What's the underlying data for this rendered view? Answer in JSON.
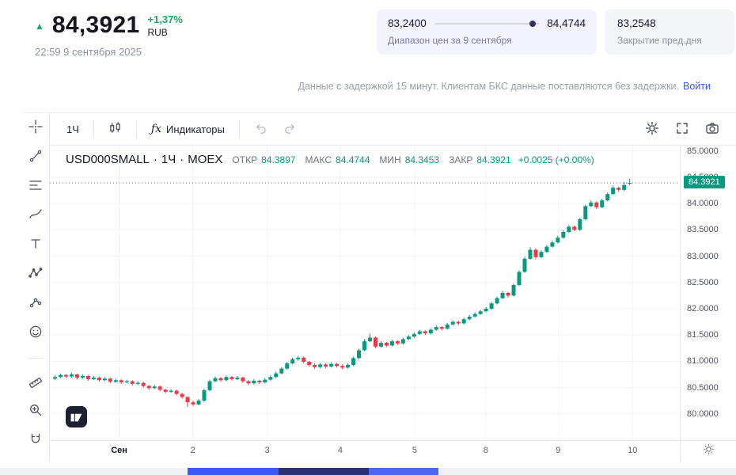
{
  "header": {
    "big_price": "84,3921",
    "change_pct": "+1,37%",
    "currency": "RUB",
    "timestamp": "22:59 9 сентября 2025",
    "range_widget": {
      "low": "83,2400",
      "high": "84,4744",
      "caption": "Диапазон цен за 9 сентября",
      "dot_position": 0.94
    },
    "prev_close": {
      "value": "83,2548",
      "caption": "Закрытие пред.дня"
    },
    "delay_notice": "Данные с задержкой 15 минут. Клиентам БКС данные поставляются без задержки.",
    "login_link": "Войти"
  },
  "toolbar": {
    "interval_button": "1Ч",
    "fx": "ƒx",
    "indicators_label": "Индикаторы"
  },
  "icons": {
    "toolbar_right": [
      "settings-icon",
      "fullscreen-icon",
      "camera-icon"
    ],
    "left_tools": [
      "crosshair",
      "trend-line",
      "fib-retracement",
      "brush",
      "text",
      "xabcd-pattern",
      "forecast",
      "emoji",
      "ruler",
      "zoom-in",
      "magnet"
    ]
  },
  "legend": {
    "symbol": "USD000SMALL",
    "separator": "·",
    "interval": "1Ч",
    "exchange": "MOEX",
    "open_label": "ОТКР",
    "open": "84.3897",
    "high_label": "МАКС",
    "high": "84.4744",
    "low_label": "МИН",
    "low": "84.3453",
    "close_label": "ЗАКР",
    "close": "84.3921",
    "change": "+0.0025 (+0.00%)"
  },
  "price_scale": {
    "labels": [
      "85.0000",
      "84.5000",
      "84.0000",
      "83.5000",
      "83.0000",
      "82.5000",
      "82.0000",
      "81.5000",
      "81.0000",
      "80.5000",
      "80.0000"
    ],
    "current_badge": "84.3921"
  },
  "time_scale": {
    "ticks": [
      {
        "label": "Сен",
        "pos": 0.11,
        "month": true
      },
      {
        "label": "2",
        "pos": 0.227
      },
      {
        "label": "3",
        "pos": 0.345
      },
      {
        "label": "4",
        "pos": 0.461
      },
      {
        "label": "5",
        "pos": 0.579
      },
      {
        "label": "8",
        "pos": 0.692
      },
      {
        "label": "9",
        "pos": 0.807
      },
      {
        "label": "10",
        "pos": 0.925
      }
    ]
  },
  "chart_data": {
    "type": "candlestick",
    "symbol": "USD000SMALL",
    "interval": "1Ч",
    "exchange": "MOEX",
    "title": "USD000SMALL · 1Ч · MOEX",
    "up_color": "#089981",
    "down_color": "#f23645",
    "grid_color": "#f0f3fa",
    "y_min": 79.5,
    "y_max": 85.1,
    "gridline_step": 0.5,
    "current_price": 84.3921,
    "ohlc_last": {
      "open": 84.3897,
      "high": 84.4744,
      "low": 84.3453,
      "close": 84.3921
    },
    "day_range": {
      "low": 83.24,
      "high": 84.4744
    },
    "prev_close": 83.2548,
    "candles": [
      [
        80.67,
        80.73,
        80.64,
        80.7
      ],
      [
        80.7,
        80.77,
        80.68,
        80.74
      ],
      [
        80.74,
        80.76,
        80.68,
        80.71
      ],
      [
        80.71,
        80.78,
        80.69,
        80.75
      ],
      [
        80.75,
        80.77,
        80.66,
        80.69
      ],
      [
        80.69,
        80.75,
        80.67,
        80.72
      ],
      [
        80.72,
        80.74,
        80.63,
        80.66
      ],
      [
        80.66,
        80.72,
        80.64,
        80.69
      ],
      [
        80.69,
        80.71,
        80.61,
        80.64
      ],
      [
        80.64,
        80.7,
        80.62,
        80.67
      ],
      [
        80.67,
        80.69,
        80.58,
        80.61
      ],
      [
        80.61,
        80.67,
        80.59,
        80.64
      ],
      [
        80.64,
        80.66,
        80.57,
        80.6
      ],
      [
        80.6,
        80.65,
        80.58,
        80.62
      ],
      [
        80.62,
        80.64,
        80.54,
        80.57
      ],
      [
        80.57,
        80.62,
        80.55,
        80.59
      ],
      [
        80.59,
        80.61,
        80.5,
        80.53
      ],
      [
        80.53,
        80.55,
        80.46,
        80.49
      ],
      [
        80.49,
        80.55,
        80.47,
        80.52
      ],
      [
        80.52,
        80.54,
        80.43,
        80.46
      ],
      [
        80.46,
        80.48,
        80.39,
        80.42
      ],
      [
        80.42,
        80.47,
        80.4,
        80.44
      ],
      [
        80.44,
        80.46,
        80.35,
        80.38
      ],
      [
        80.38,
        80.4,
        80.29,
        80.32
      ],
      [
        80.32,
        80.34,
        80.13,
        80.22
      ],
      [
        80.22,
        80.25,
        80.15,
        80.18
      ],
      [
        80.18,
        80.28,
        80.16,
        80.25
      ],
      [
        80.25,
        80.48,
        80.23,
        80.45
      ],
      [
        80.45,
        80.65,
        80.43,
        80.62
      ],
      [
        80.62,
        80.71,
        80.6,
        80.68
      ],
      [
        80.68,
        80.7,
        80.61,
        80.64
      ],
      [
        80.64,
        80.73,
        80.62,
        80.7
      ],
      [
        80.7,
        80.72,
        80.63,
        80.66
      ],
      [
        80.66,
        80.72,
        80.64,
        80.69
      ],
      [
        80.69,
        80.71,
        80.59,
        80.62
      ],
      [
        80.62,
        80.64,
        80.55,
        80.58
      ],
      [
        80.58,
        80.66,
        80.56,
        80.63
      ],
      [
        80.63,
        80.65,
        80.57,
        80.6
      ],
      [
        80.6,
        80.68,
        80.58,
        80.65
      ],
      [
        80.65,
        80.73,
        80.63,
        80.7
      ],
      [
        80.7,
        80.8,
        80.68,
        80.77
      ],
      [
        80.77,
        80.89,
        80.75,
        80.86
      ],
      [
        80.86,
        80.99,
        80.84,
        80.96
      ],
      [
        80.96,
        81.07,
        80.94,
        81.04
      ],
      [
        81.04,
        81.1,
        81.01,
        81.07
      ],
      [
        81.07,
        81.09,
        80.96,
        80.99
      ],
      [
        80.99,
        81.01,
        80.9,
        80.93
      ],
      [
        80.93,
        80.96,
        80.86,
        80.89
      ],
      [
        80.89,
        80.97,
        80.87,
        80.94
      ],
      [
        80.94,
        80.96,
        80.87,
        80.9
      ],
      [
        80.9,
        80.98,
        80.88,
        80.95
      ],
      [
        80.95,
        80.97,
        80.88,
        80.91
      ],
      [
        80.91,
        80.94,
        80.85,
        80.88
      ],
      [
        80.88,
        80.96,
        80.86,
        80.93
      ],
      [
        80.93,
        81.09,
        80.91,
        81.06
      ],
      [
        81.06,
        81.24,
        81.04,
        81.21
      ],
      [
        81.21,
        81.42,
        81.19,
        81.38
      ],
      [
        81.38,
        81.53,
        81.36,
        81.45
      ],
      [
        81.45,
        81.47,
        81.25,
        81.28
      ],
      [
        81.28,
        81.38,
        81.26,
        81.35
      ],
      [
        81.35,
        81.37,
        81.27,
        81.3
      ],
      [
        81.3,
        81.41,
        81.28,
        81.38
      ],
      [
        81.38,
        81.4,
        81.31,
        81.34
      ],
      [
        81.34,
        81.45,
        81.32,
        81.42
      ],
      [
        81.42,
        81.5,
        81.4,
        81.47
      ],
      [
        81.47,
        81.55,
        81.45,
        81.52
      ],
      [
        81.52,
        81.6,
        81.5,
        81.57
      ],
      [
        81.57,
        81.59,
        81.5,
        81.53
      ],
      [
        81.53,
        81.63,
        81.51,
        81.6
      ],
      [
        81.6,
        81.68,
        81.58,
        81.65
      ],
      [
        81.65,
        81.67,
        81.59,
        81.62
      ],
      [
        81.62,
        81.73,
        81.6,
        81.7
      ],
      [
        81.7,
        81.78,
        81.68,
        81.75
      ],
      [
        81.75,
        81.77,
        81.69,
        81.72
      ],
      [
        81.72,
        81.83,
        81.7,
        81.8
      ],
      [
        81.8,
        81.88,
        81.78,
        81.85
      ],
      [
        81.85,
        81.93,
        81.83,
        81.9
      ],
      [
        81.9,
        81.98,
        81.88,
        81.95
      ],
      [
        81.95,
        82.03,
        81.93,
        82.0
      ],
      [
        82.0,
        82.13,
        81.98,
        82.1
      ],
      [
        82.1,
        82.23,
        82.08,
        82.2
      ],
      [
        82.2,
        82.34,
        82.18,
        82.3
      ],
      [
        82.3,
        82.32,
        82.21,
        82.25
      ],
      [
        82.25,
        82.48,
        82.23,
        82.45
      ],
      [
        82.45,
        82.73,
        82.43,
        82.7
      ],
      [
        82.7,
        82.99,
        82.68,
        82.95
      ],
      [
        82.95,
        83.17,
        82.93,
        83.12
      ],
      [
        83.12,
        83.15,
        82.94,
        82.98
      ],
      [
        82.98,
        83.11,
        82.96,
        83.08
      ],
      [
        83.08,
        83.21,
        83.06,
        83.18
      ],
      [
        83.18,
        83.3,
        83.16,
        83.26
      ],
      [
        83.26,
        83.39,
        83.24,
        83.35
      ],
      [
        83.35,
        83.49,
        83.33,
        83.46
      ],
      [
        83.46,
        83.59,
        83.44,
        83.56
      ],
      [
        83.56,
        83.58,
        83.47,
        83.5
      ],
      [
        83.5,
        83.73,
        83.48,
        83.7
      ],
      [
        83.7,
        83.98,
        83.68,
        83.95
      ],
      [
        83.95,
        84.06,
        83.93,
        84.02
      ],
      [
        84.02,
        84.04,
        83.9,
        83.93
      ],
      [
        83.93,
        84.09,
        83.91,
        84.06
      ],
      [
        84.06,
        84.21,
        84.04,
        84.18
      ],
      [
        84.18,
        84.34,
        84.16,
        84.3
      ],
      [
        84.3,
        84.32,
        84.22,
        84.26
      ],
      [
        84.26,
        84.41,
        84.24,
        84.35
      ],
      [
        84.3897,
        84.4744,
        84.3453,
        84.3921
      ]
    ]
  }
}
